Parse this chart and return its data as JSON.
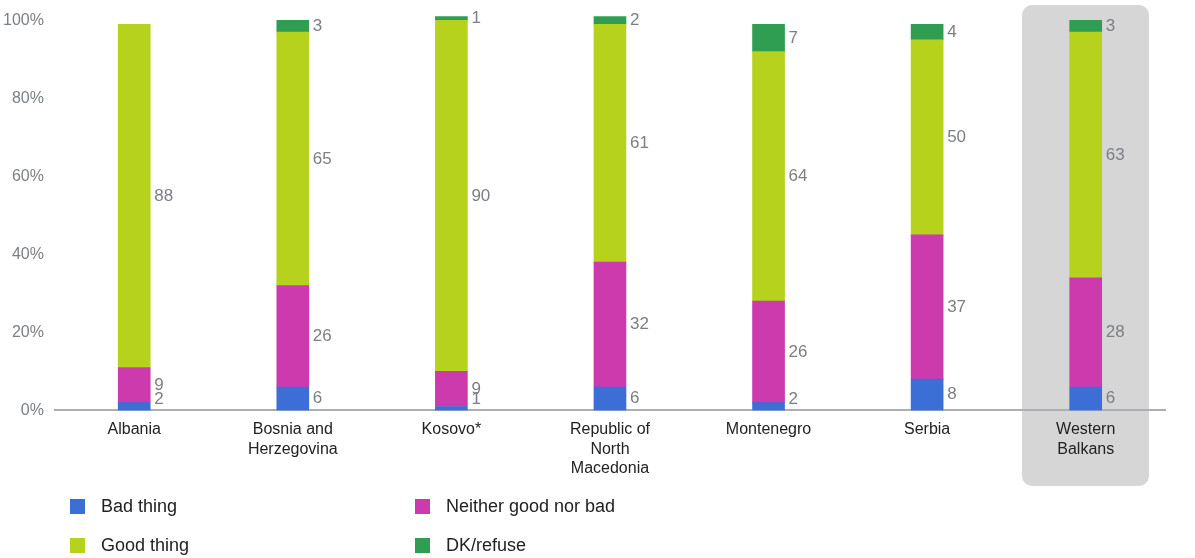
{
  "chart_data": {
    "type": "bar",
    "stacked": true,
    "categories": [
      "Albania",
      "Bosnia and Herzegovina",
      "Kosovo*",
      "Republic of North Macedonia",
      "Montenegro",
      "Serbia",
      "Western Balkans"
    ],
    "series": [
      {
        "name": "Bad thing",
        "color": "#3b6fd6",
        "values": [
          2,
          6,
          1,
          6,
          2,
          8,
          6
        ]
      },
      {
        "name": "Neither good nor bad",
        "color": "#cc3aad",
        "values": [
          9,
          26,
          9,
          32,
          26,
          37,
          28
        ]
      },
      {
        "name": "Good thing",
        "color": "#b6d21c",
        "values": [
          88,
          65,
          90,
          61,
          64,
          50,
          63
        ]
      },
      {
        "name": "DK/refuse",
        "color": "#2f9e52",
        "values": [
          null,
          3,
          1,
          2,
          7,
          4,
          3
        ]
      }
    ],
    "ylim": [
      0,
      102
    ],
    "yticks": [
      {
        "value": 0,
        "label": "0%"
      },
      {
        "value": 20,
        "label": "20%"
      },
      {
        "value": 40,
        "label": "40%"
      },
      {
        "value": 60,
        "label": "60%"
      },
      {
        "value": 80,
        "label": "80%"
      },
      {
        "value": 100,
        "label": "100%"
      }
    ],
    "bands": [
      {
        "axis": "x",
        "from": "Western Balkans",
        "to": "Western Balkans",
        "color": "#d6d6d6"
      }
    ],
    "data_labels": true,
    "grid": false,
    "legend": "bottom left"
  }
}
